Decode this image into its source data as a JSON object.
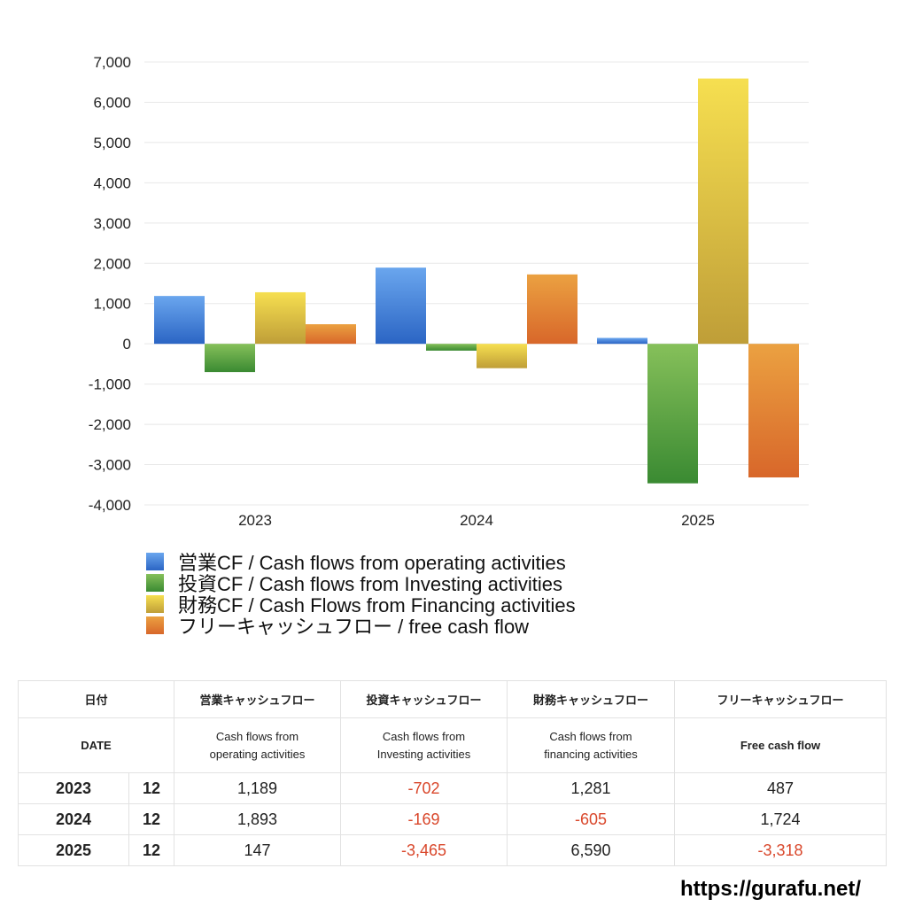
{
  "chart_data": {
    "type": "bar",
    "categories": [
      "2023",
      "2024",
      "2025"
    ],
    "ylim": [
      -4000,
      7000
    ],
    "yticks": [
      7000,
      6000,
      5000,
      4000,
      3000,
      2000,
      1000,
      0,
      -1000,
      -2000,
      -3000,
      -4000
    ],
    "ytick_labels": [
      "7,000",
      "6,000",
      "5,000",
      "4,000",
      "3,000",
      "2,000",
      "1,000",
      "0",
      "-1,000",
      "-2,000",
      "-3,000",
      "-4,000"
    ],
    "grid": true,
    "legend_position": "bottom-left",
    "series": [
      {
        "name": "営業CF / Cash flows from operating activities",
        "values": [
          1189,
          1893,
          147
        ],
        "color_top": "#6aa6ee",
        "color_bottom": "#2b65c4"
      },
      {
        "name": "投資CF / Cash flows from Investing activities",
        "values": [
          -702,
          -169,
          -3465
        ],
        "color_top": "#86c05a",
        "color_bottom": "#3a8a32"
      },
      {
        "name": "財務CF / Cash Flows from Financing activities",
        "values": [
          1281,
          -605,
          6590
        ],
        "color_top": "#f6df50",
        "color_bottom": "#bf9e38"
      },
      {
        "name": "フリーキャッシュフロー / free cash flow",
        "values": [
          487,
          1724,
          -3318
        ],
        "color_top": "#eba141",
        "color_bottom": "#d8672a"
      }
    ]
  },
  "table": {
    "headers_jp": [
      "日付",
      "営業キャッシュフロー",
      "投資キャッシュフロー",
      "財務キャッシュフロー",
      "フリーキャッシュフロー"
    ],
    "headers_en": {
      "date": "DATE",
      "op_1": "Cash flows from",
      "op_2": "operating activities",
      "inv_1": "Cash flows from",
      "inv_2": "Investing activities",
      "fin_1": "Cash flows from",
      "fin_2": "financing activities",
      "fcf": "Free cash flow"
    },
    "rows": [
      {
        "year": "2023",
        "month": "12",
        "op": "1,189",
        "inv": "-702",
        "fin": "1,281",
        "fcf": "487"
      },
      {
        "year": "2024",
        "month": "12",
        "op": "1,893",
        "inv": "-169",
        "fin": "-605",
        "fcf": "1,724"
      },
      {
        "year": "2025",
        "month": "12",
        "op": "147",
        "inv": "-3,465",
        "fin": "6,590",
        "fcf": "-3,318"
      }
    ]
  },
  "footer": {
    "site_url": "https://gurafu.net/"
  }
}
